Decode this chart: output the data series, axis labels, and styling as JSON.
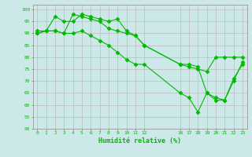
{
  "line1": {
    "x": [
      0,
      1,
      2,
      3,
      4,
      5,
      6,
      7,
      8,
      9,
      10,
      11,
      12,
      16,
      17,
      18,
      19,
      20,
      21,
      22,
      23
    ],
    "y": [
      91,
      91,
      97,
      95,
      95,
      98,
      97,
      96,
      95,
      96,
      91,
      89,
      85,
      77,
      77,
      76,
      65,
      63,
      62,
      70,
      78
    ]
  },
  "line2": {
    "x": [
      0,
      1,
      2,
      3,
      4,
      5,
      6,
      7,
      8,
      9,
      10,
      11,
      12,
      16,
      17,
      18,
      19,
      20,
      21,
      22,
      23
    ],
    "y": [
      90,
      91,
      91,
      90,
      90,
      91,
      89,
      87,
      85,
      82,
      79,
      77,
      77,
      65,
      63,
      57,
      65,
      62,
      62,
      71,
      77
    ]
  },
  "line3": {
    "x": [
      0,
      1,
      2,
      3,
      4,
      5,
      6,
      7,
      8,
      9,
      10,
      11,
      12,
      16,
      17,
      18,
      19,
      20,
      21,
      22,
      23
    ],
    "y": [
      90,
      91,
      91,
      90,
      98,
      97,
      96,
      95,
      92,
      91,
      90,
      89,
      85,
      77,
      76,
      75,
      74,
      80,
      80,
      80,
      80
    ]
  },
  "bg_color": "#cce8e8",
  "line_color": "#00bb00",
  "grid_color": "#bbbbbb",
  "xlabel": "Humidité relative (%)",
  "ylim": [
    50,
    102
  ],
  "xlim": [
    -0.5,
    23.5
  ],
  "yticks": [
    50,
    55,
    60,
    65,
    70,
    75,
    80,
    85,
    90,
    95,
    100
  ],
  "xticks": [
    0,
    1,
    2,
    3,
    4,
    5,
    6,
    7,
    8,
    9,
    10,
    11,
    12,
    16,
    17,
    18,
    19,
    20,
    21,
    22,
    23
  ]
}
